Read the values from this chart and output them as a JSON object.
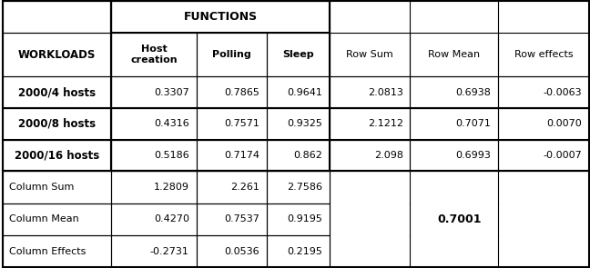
{
  "functions_header": "FUNCTIONS",
  "col_headers_row0": [
    "",
    "FUNCTIONS",
    "",
    "",
    "",
    "",
    ""
  ],
  "col_headers_row1": [
    "WORKLOADS",
    "Host\ncreation",
    "Polling",
    "Sleep",
    "Row Sum",
    "Row Mean",
    "Row effects"
  ],
  "data_rows": [
    [
      "2000/4 hosts",
      "0.3307",
      "0.7865",
      "0.9641",
      "2.0813",
      "0.6938",
      "-0.0063"
    ],
    [
      "2000/8 hosts",
      "0.4316",
      "0.7571",
      "0.9325",
      "2.1212",
      "0.7071",
      "0.0070"
    ],
    [
      "2000/16 hosts",
      "0.5186",
      "0.7174",
      "0.862",
      "2.098",
      "0.6993",
      "-0.0007"
    ]
  ],
  "summary_rows": [
    [
      "Column Sum",
      "1.2809",
      "2.261",
      "2.7586",
      "",
      "",
      ""
    ],
    [
      "Column Mean",
      "0.4270",
      "0.7537",
      "0.9195",
      "",
      "0.7001",
      ""
    ],
    [
      "Column Effects",
      "-0.2731",
      "0.0536",
      "0.2195",
      "",
      "",
      ""
    ]
  ],
  "grand_mean": "0.7001",
  "background_color": "#ffffff"
}
